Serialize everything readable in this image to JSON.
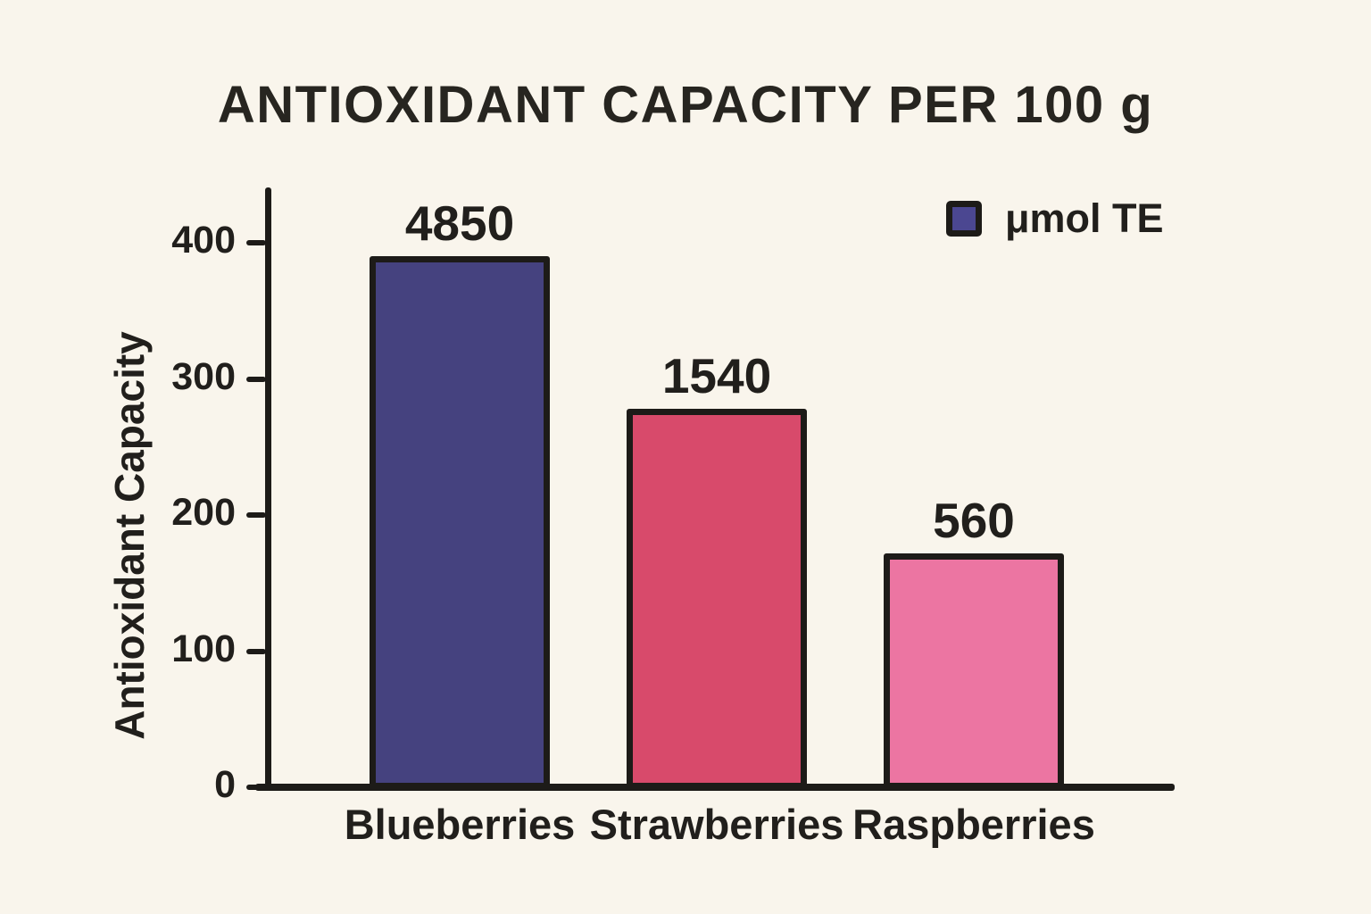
{
  "page": {
    "background_color": "#f9f5ec",
    "ink_color": "#1d1b18"
  },
  "chart_data": {
    "type": "bar",
    "title": "ANTIOXIDANT CAPACITY PER 100 g",
    "ylabel": "Antioxidant Capacity",
    "xlabel": "",
    "categories": [
      "Blueberries",
      "Strawberries",
      "Raspberries"
    ],
    "values": [
      4850,
      1540,
      560
    ],
    "value_labels": [
      "4850",
      "1540",
      "560"
    ],
    "series": [
      {
        "name": "μmol TE",
        "values": [
          4850,
          1540,
          560
        ]
      }
    ],
    "bar_colors": [
      "#45427f",
      "#d84a6b",
      "#ec75a2"
    ],
    "bar_tops_on_axis_units": [
      390,
      278,
      172
    ],
    "ylim": [
      0,
      400
    ],
    "yticks": [
      "0",
      "100",
      "200",
      "300",
      "400"
    ],
    "grid": false,
    "legend": {
      "label": "μmol TE",
      "swatch_color": "#4b4791",
      "position": "top-right"
    }
  }
}
